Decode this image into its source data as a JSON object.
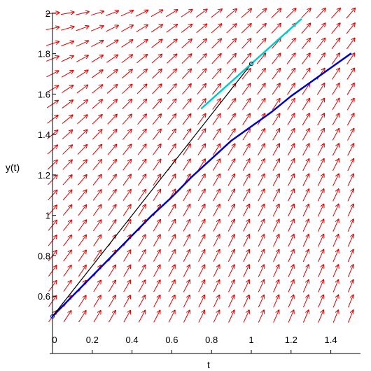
{
  "chart_data": {
    "type": "line",
    "title": "",
    "xlabel": "t",
    "ylabel": "y(t)",
    "xlim": [
      0,
      1.5
    ],
    "ylim": [
      0.5,
      2.0
    ],
    "x_ticks": [
      "0",
      "0.2",
      "0.4",
      "0.6",
      "0.8",
      "1",
      "1.2",
      "1.4"
    ],
    "y_ticks": [
      "0.6",
      "0.8",
      "1",
      "1.2",
      "1.4",
      "1.6",
      "1.8",
      "2"
    ],
    "direction_field": {
      "color": "#e00000",
      "t_range": [
        0,
        1.5
      ],
      "y_range": [
        0.5,
        2.0
      ],
      "grid": [
        21,
        21
      ]
    },
    "series": [
      {
        "type": "line",
        "color": "#0000cc",
        "x": [
          0,
          0.1,
          0.2,
          0.3,
          0.4,
          0.5,
          0.6,
          0.7,
          0.8,
          0.9,
          1.0,
          1.1,
          1.2,
          1.3,
          1.4,
          1.5
        ],
        "y": [
          0.5,
          0.6,
          0.7,
          0.8,
          0.9,
          1.0,
          1.09,
          1.19,
          1.28,
          1.37,
          1.44,
          1.51,
          1.59,
          1.66,
          1.73,
          1.8
        ]
      },
      {
        "type": "line",
        "color": "#000000",
        "x": [
          0,
          1.0
        ],
        "y": [
          0.5,
          1.75
        ]
      },
      {
        "type": "line",
        "color": "#00cccc",
        "x": [
          0.75,
          1.25
        ],
        "y": [
          1.53,
          1.97
        ]
      }
    ],
    "markers": [
      {
        "x": 0,
        "y": 0.5,
        "color": "#0000cc"
      },
      {
        "x": 1.0,
        "y": 1.75,
        "color": "#000000"
      }
    ]
  }
}
